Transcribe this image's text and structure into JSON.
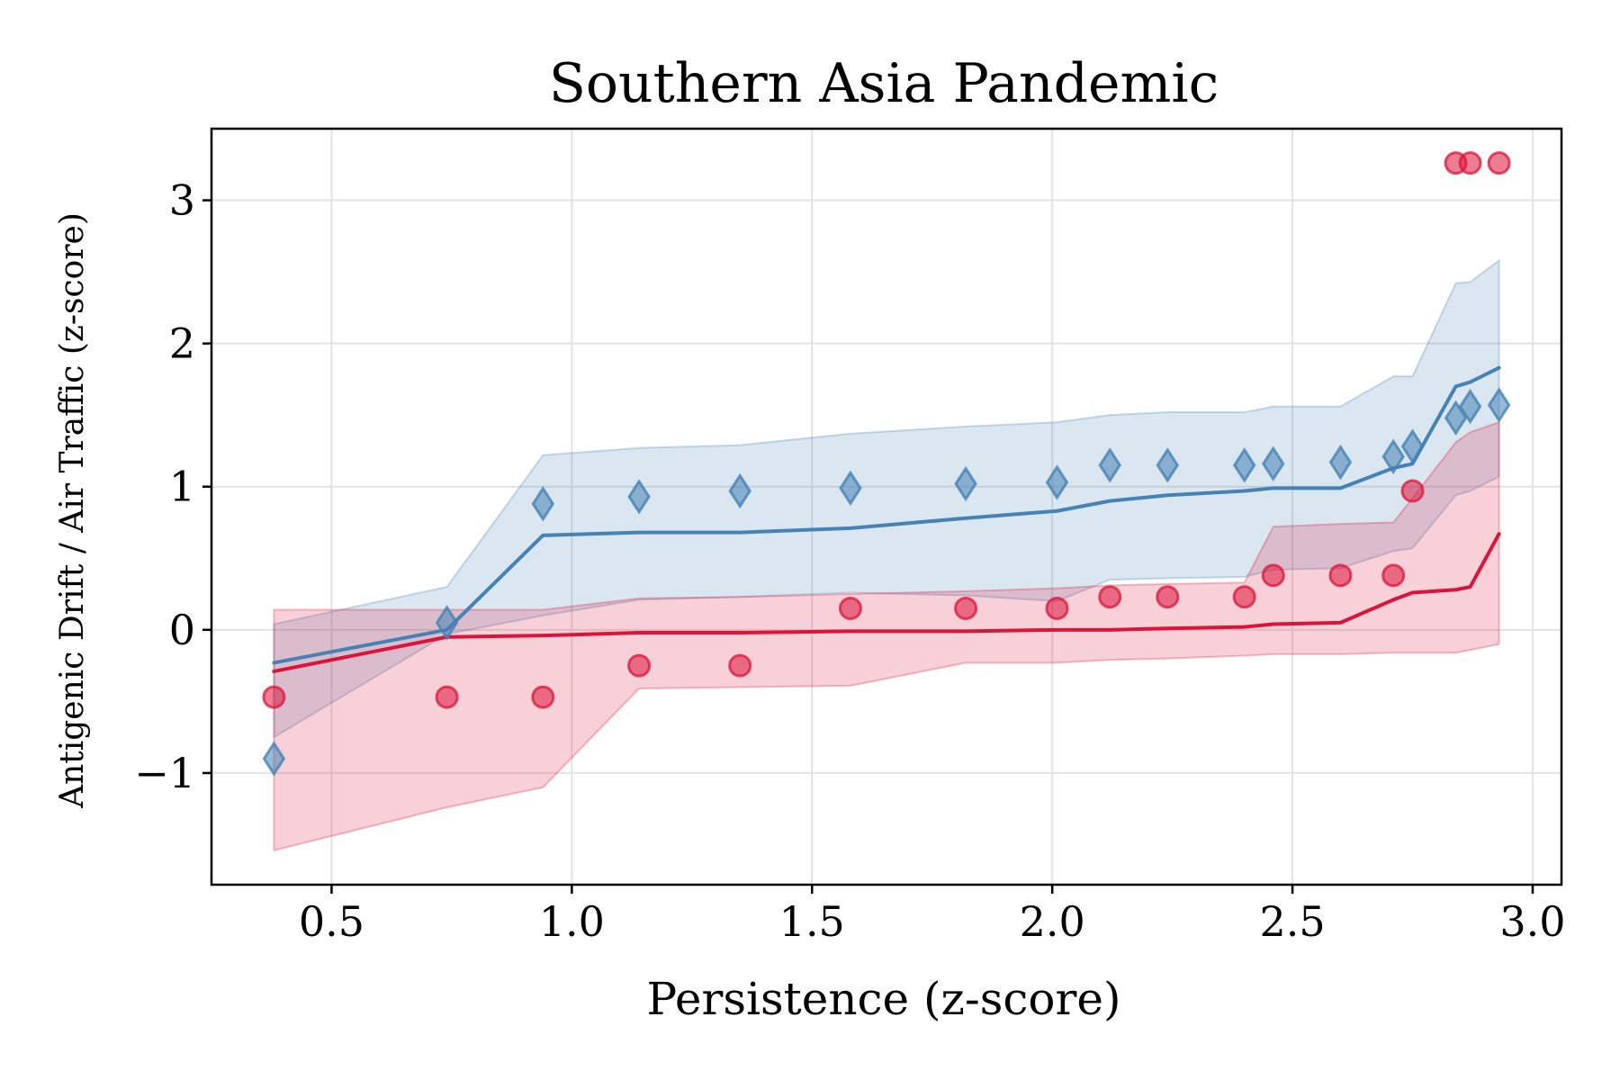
{
  "chart_data": {
    "type": "scatter",
    "title": "Southern Asia Pandemic",
    "xlabel": "Persistence (z-score)",
    "ylabel": "Antigenic Drift / Air Traffic (z-score)",
    "xlim": [
      0.25,
      3.06
    ],
    "ylim": [
      -1.78,
      3.5
    ],
    "grid": true,
    "xticks": [
      0.5,
      1.0,
      1.5,
      2.0,
      2.5,
      3.0
    ],
    "xtick_labels": [
      "0.5",
      "1.0",
      "1.5",
      "2.0",
      "2.5",
      "3.0"
    ],
    "yticks": [
      -1,
      0,
      1,
      2,
      3
    ],
    "ytick_labels": [
      "−1",
      "0",
      "1",
      "2",
      "3"
    ],
    "x": [
      0.38,
      0.74,
      0.94,
      1.14,
      1.35,
      1.58,
      1.82,
      2.01,
      2.12,
      2.24,
      2.4,
      2.46,
      2.6,
      2.71,
      2.75,
      2.84,
      2.87,
      2.93
    ],
    "series": [
      {
        "color": "#4682b4",
        "marker": "diamond",
        "points": [
          -0.9,
          0.05,
          0.88,
          0.93,
          0.97,
          0.99,
          1.02,
          1.03,
          1.15,
          1.15,
          1.15,
          1.16,
          1.17,
          1.21,
          1.28,
          1.48,
          1.56,
          1.57
        ],
        "line": [
          -0.23,
          0.0,
          0.66,
          0.68,
          0.68,
          0.71,
          0.78,
          0.83,
          0.9,
          0.94,
          0.97,
          0.99,
          0.99,
          1.13,
          1.16,
          1.7,
          1.73,
          1.83
        ],
        "band_upper": [
          0.04,
          0.3,
          1.22,
          1.27,
          1.29,
          1.37,
          1.42,
          1.45,
          1.5,
          1.52,
          1.52,
          1.56,
          1.56,
          1.77,
          1.77,
          2.42,
          2.43,
          2.58
        ],
        "band_lower": [
          -0.75,
          -0.03,
          0.1,
          0.21,
          0.23,
          0.26,
          0.24,
          0.2,
          0.35,
          0.36,
          0.37,
          0.42,
          0.43,
          0.55,
          0.57,
          0.94,
          0.97,
          1.07
        ]
      },
      {
        "color": "#dc143c",
        "marker": "circle",
        "points": [
          -0.47,
          -0.47,
          -0.47,
          -0.25,
          -0.25,
          0.15,
          0.15,
          0.15,
          0.23,
          0.23,
          0.23,
          0.38,
          0.38,
          0.38,
          0.97,
          3.26,
          3.26,
          3.26
        ],
        "line": [
          -0.29,
          -0.05,
          -0.04,
          -0.02,
          -0.02,
          -0.01,
          -0.01,
          0.0,
          0.0,
          0.01,
          0.02,
          0.04,
          0.05,
          0.21,
          0.26,
          0.28,
          0.3,
          0.67
        ],
        "band_upper": [
          0.14,
          0.14,
          0.14,
          0.22,
          0.23,
          0.25,
          0.27,
          0.29,
          0.31,
          0.32,
          0.33,
          0.72,
          0.74,
          0.75,
          0.92,
          1.31,
          1.38,
          1.45
        ],
        "band_lower": [
          -1.54,
          -1.24,
          -1.1,
          -0.41,
          -0.4,
          -0.39,
          -0.23,
          -0.23,
          -0.21,
          -0.2,
          -0.18,
          -0.17,
          -0.17,
          -0.16,
          -0.16,
          -0.16,
          -0.14,
          -0.1
        ]
      }
    ]
  }
}
